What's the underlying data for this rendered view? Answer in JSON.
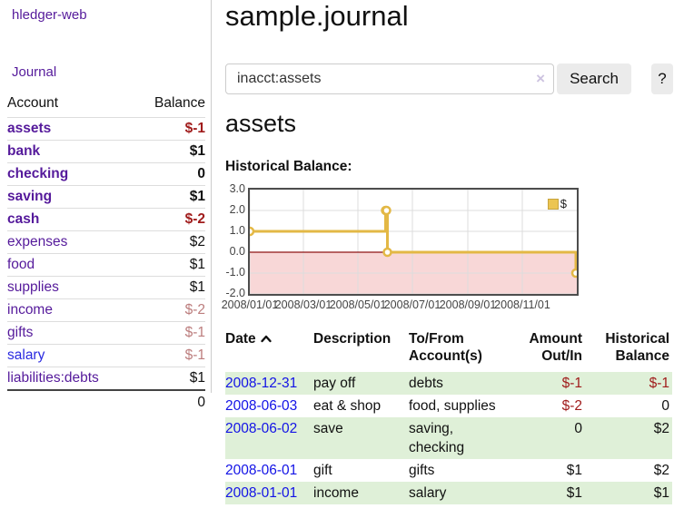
{
  "sidebar": {
    "brand": "hledger-web",
    "journal_label": "Journal",
    "accounts_table": {
      "headers": {
        "account": "Account",
        "balance": "Balance"
      },
      "rows": [
        {
          "name": "assets",
          "balance": "$-1",
          "indent": 1,
          "bold": true,
          "value_style": "neg"
        },
        {
          "name": "bank",
          "balance": "$1",
          "indent": 2,
          "bold": true,
          "value_style": ""
        },
        {
          "name": "checking",
          "balance": "0",
          "indent": 3,
          "bold": true,
          "value_style": ""
        },
        {
          "name": "saving",
          "balance": "$1",
          "indent": 3,
          "bold": true,
          "value_style": ""
        },
        {
          "name": "cash",
          "balance": "$-2",
          "indent": 2,
          "bold": true,
          "value_style": "neg"
        },
        {
          "name": "expenses",
          "balance": "$2",
          "indent": 1,
          "bold": false,
          "value_style": ""
        },
        {
          "name": "food",
          "balance": "$1",
          "indent": 2,
          "bold": false,
          "value_style": ""
        },
        {
          "name": "supplies",
          "balance": "$1",
          "indent": 2,
          "bold": false,
          "value_style": ""
        },
        {
          "name": "income",
          "balance": "$-2",
          "indent": 1,
          "bold": false,
          "value_style": "neg-dim"
        },
        {
          "name": "gifts",
          "balance": "$-1",
          "indent": 2,
          "bold": false,
          "value_style": "neg-dim"
        },
        {
          "name": "salary",
          "balance": "$-1",
          "indent": 2,
          "bold": false,
          "value_style": "neg-dim",
          "name_style": "blue"
        },
        {
          "name": "liabilities:debts",
          "balance": "$1",
          "indent": 1,
          "bold": false,
          "value_style": ""
        }
      ],
      "total": "0"
    }
  },
  "header": {
    "title": "sample.journal"
  },
  "search": {
    "value": "inacct:assets",
    "clear_icon": "×",
    "button_label": "Search",
    "help_label": "?"
  },
  "account_page": {
    "title": "assets",
    "chart_label": "Historical Balance:"
  },
  "chart_data": {
    "type": "line",
    "step": true,
    "title": "Historical Balance",
    "series_label": "$",
    "line_color": "#e3b845",
    "marker_fill": "#ffffff",
    "grid_color": "#dcdcdc",
    "negative_fill": "#f8d7d7",
    "zero_line_color": "#8f1414",
    "ylim": [
      -2,
      3
    ],
    "xlim": [
      "2008-01-01",
      "2009-01-01"
    ],
    "yticks": [
      {
        "label": "3.0",
        "value": 3
      },
      {
        "label": "2.0",
        "value": 2
      },
      {
        "label": "1.0",
        "value": 1
      },
      {
        "label": "0.0",
        "value": 0
      },
      {
        "label": "-1.0",
        "value": -1
      },
      {
        "label": "-2.0",
        "value": -2
      }
    ],
    "xticks": [
      {
        "label": "2008/01/01",
        "date": "2008-01-01"
      },
      {
        "label": "2008/03/01",
        "date": "2008-03-01"
      },
      {
        "label": "2008/05/01",
        "date": "2008-05-01"
      },
      {
        "label": "2008/07/01",
        "date": "2008-07-01"
      },
      {
        "label": "2008/09/01",
        "date": "2008-09-01"
      },
      {
        "label": "2008/11/01",
        "date": "2008-11-01"
      }
    ],
    "series": [
      {
        "name": "$",
        "points": [
          [
            "2008-01-01",
            1
          ],
          [
            "2008-06-01",
            2
          ],
          [
            "2008-06-02",
            2
          ],
          [
            "2008-06-03",
            0
          ],
          [
            "2008-12-31",
            -1
          ]
        ]
      }
    ]
  },
  "register_table": {
    "headers": [
      {
        "label": "Date",
        "sort": "ascending"
      },
      {
        "label": "Description"
      },
      {
        "label": "To/From Account(s)"
      },
      {
        "label": "Amount Out/In"
      },
      {
        "label": "Historical Balance"
      }
    ],
    "rows": [
      {
        "date": "2008-12-31",
        "description": "pay off",
        "accounts": "debts",
        "amount": "$-1",
        "amount_negative": true,
        "balance": "$-1",
        "balance_negative": true
      },
      {
        "date": "2008-06-03",
        "description": "eat & shop",
        "accounts": "food, supplies",
        "amount": "$-2",
        "amount_negative": true,
        "balance": "0",
        "balance_negative": false
      },
      {
        "date": "2008-06-02",
        "description": "save",
        "accounts": "saving, checking",
        "amount": "0",
        "amount_negative": false,
        "balance": "$2",
        "balance_negative": false
      },
      {
        "date": "2008-06-01",
        "description": "gift",
        "accounts": "gifts",
        "amount": "$1",
        "amount_negative": false,
        "balance": "$2",
        "balance_negative": false
      },
      {
        "date": "2008-01-01",
        "description": "income",
        "accounts": "salary",
        "amount": "$1",
        "amount_negative": false,
        "balance": "$1",
        "balance_negative": false
      }
    ]
  }
}
